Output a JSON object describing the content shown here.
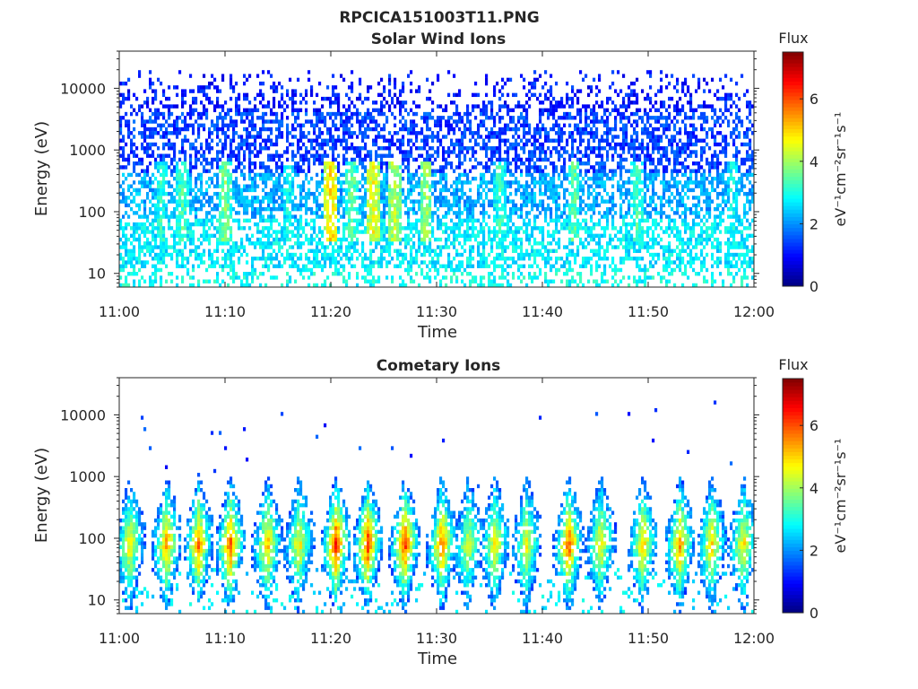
{
  "figure": {
    "title": "RPCICA151003T11.PNG"
  },
  "chart_data": [
    {
      "type": "heatmap",
      "title": "Solar Wind Ions",
      "xlabel": "Time",
      "ylabel": "Energy (eV)",
      "x_ticks": [
        "11:00",
        "11:10",
        "11:20",
        "11:30",
        "11:40",
        "11:50",
        "12:00"
      ],
      "x_range": [
        "11:00",
        "12:00"
      ],
      "y_scale": "log",
      "y_ticks": [
        10,
        100,
        1000,
        10000
      ],
      "y_tick_labels": [
        "10",
        "100",
        "1000",
        "10000"
      ],
      "y_range": [
        6,
        40000
      ],
      "colorbar": {
        "label_top": "Flux",
        "unit": "eV⁻¹cm⁻²sr⁻¹s⁻¹",
        "range": [
          0,
          7.5
        ],
        "ticks": [
          0,
          2,
          4,
          6
        ],
        "colormap": "jet"
      },
      "description_pattern": "scattered low flux (1-2) across 100-20000 eV; flux 2.5-3.5 below 300 eV",
      "peak_minutes": [
        4,
        6,
        10,
        16,
        20,
        22,
        24,
        26,
        29,
        36,
        43,
        49,
        58
      ],
      "peak_flux": [
        3.2,
        3.4,
        3.8,
        3.0,
        5.0,
        3.6,
        4.6,
        4.2,
        4.0,
        3.3,
        3.6,
        3.4,
        3.0
      ],
      "seed": 11
    },
    {
      "type": "heatmap",
      "title": "Cometary Ions",
      "xlabel": "Time",
      "ylabel": "Energy (eV)",
      "x_ticks": [
        "11:00",
        "11:10",
        "11:20",
        "11:30",
        "11:40",
        "11:50",
        "12:00"
      ],
      "x_range": [
        "11:00",
        "12:00"
      ],
      "y_scale": "log",
      "y_ticks": [
        10,
        100,
        1000,
        10000
      ],
      "y_tick_labels": [
        "10",
        "100",
        "1000",
        "10000"
      ],
      "y_range": [
        6,
        40000
      ],
      "colorbar": {
        "label_top": "Flux",
        "unit": "eV⁻¹cm⁻²sr⁻¹s⁻¹",
        "range": [
          0,
          7.5
        ],
        "ticks": [
          0,
          2,
          4,
          6
        ],
        "colormap": "jet"
      },
      "burst_centers_minutes": [
        1,
        4.5,
        7.5,
        10.5,
        14,
        17,
        20.5,
        23.5,
        27,
        30.5,
        33,
        35.5,
        38.5,
        42.5,
        45.5,
        49.5,
        53,
        56,
        59
      ],
      "burst_peak_flux": [
        5.0,
        5.6,
        5.8,
        6.2,
        5.4,
        5.0,
        6.6,
        6.4,
        6.4,
        6.0,
        4.6,
        5.0,
        4.8,
        6.2,
        5.0,
        5.4,
        5.6,
        5.2,
        5.0
      ],
      "burst_peak_energy_eV": 80,
      "seed": 23
    }
  ]
}
